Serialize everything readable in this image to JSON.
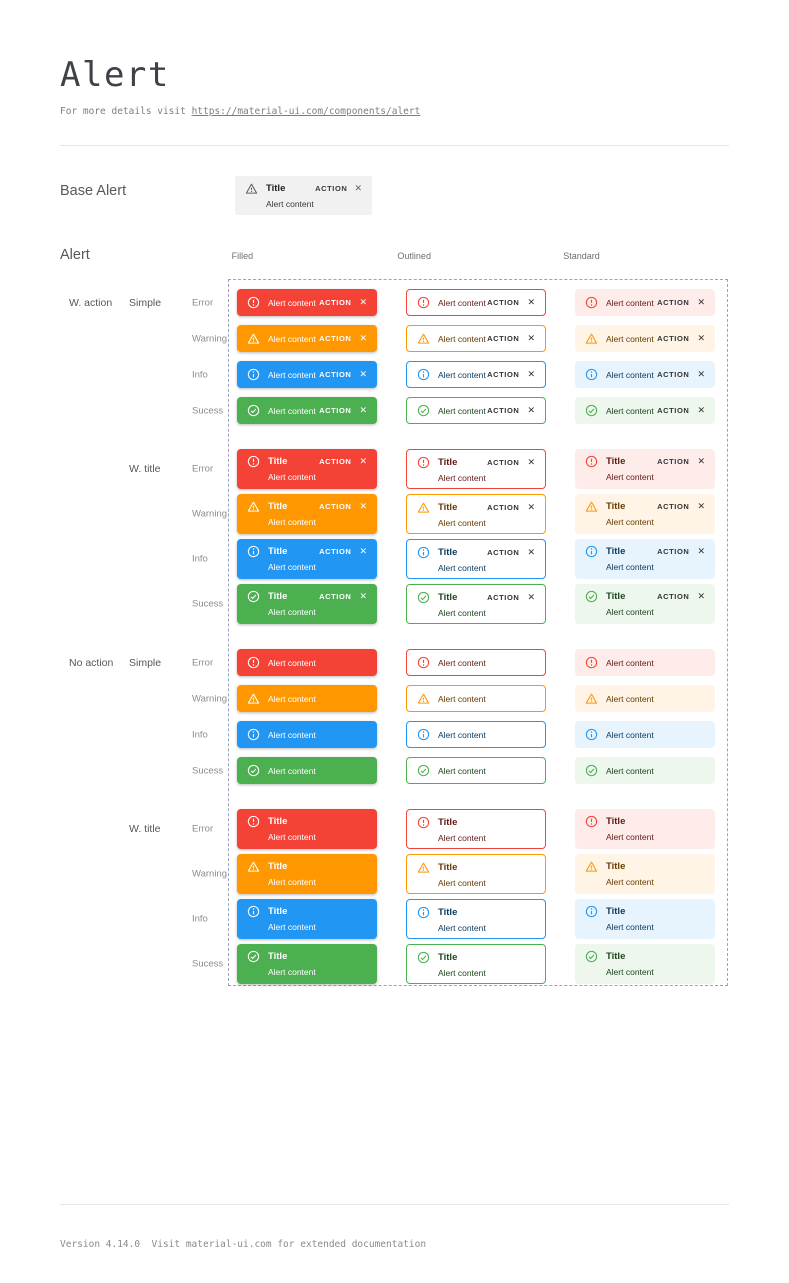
{
  "page": {
    "title": "Alert",
    "subtitle_prefix": "For more details visit ",
    "subtitle_link": "https://material-ui.com/components/alert",
    "footer": "Version 4.14.0  Visit material-ui.com for extended documentation"
  },
  "base_alert": {
    "label": "Base Alert",
    "title": "Title",
    "content": "Alert content",
    "action": "ACTION",
    "close_glyph": "✕",
    "icon": "warning-triangle-icon",
    "background": "#f1f1f1"
  },
  "matrix": {
    "label": "Alert",
    "columns": [
      {
        "label": "Filled",
        "variant": "filled"
      },
      {
        "label": "Outlined",
        "variant": "outlined"
      },
      {
        "label": "Standard",
        "variant": "standard"
      }
    ],
    "severity_keys": [
      "error",
      "warning",
      "info",
      "success"
    ],
    "groups": [
      {
        "group_label": "W. action",
        "variant_label": "Simple",
        "with_title": false,
        "with_action": true,
        "rows": [
          "Error",
          "Warning",
          "Info",
          "Sucess"
        ]
      },
      {
        "group_label": "",
        "variant_label": "W. title",
        "with_title": true,
        "with_action": true,
        "rows": [
          "Error",
          "Warning",
          "Info",
          "Sucess"
        ]
      },
      {
        "group_label": "No action",
        "variant_label": "Simple",
        "with_title": false,
        "with_action": false,
        "rows": [
          "Error",
          "Warning",
          "Info",
          "Sucess"
        ]
      },
      {
        "group_label": "",
        "variant_label": "W. title",
        "with_title": true,
        "with_action": false,
        "rows": [
          "Error",
          "Warning",
          "Info",
          "Sucess"
        ]
      }
    ],
    "alert_template": {
      "title": "Title",
      "content": "Alert content",
      "action": "ACTION",
      "close_glyph": "✕"
    }
  },
  "icons": {
    "error": "error-outline-icon",
    "warning": "warning-triangle-icon",
    "info": "info-outline-icon",
    "success": "check-circle-icon",
    "close": "close-icon"
  },
  "colors": {
    "error": {
      "main": "#f44336",
      "background": "#fdecea",
      "dark": "#611a15"
    },
    "warning": {
      "main": "#ff9800",
      "background": "#fff4e5",
      "dark": "#663c00"
    },
    "info": {
      "main": "#2196f3",
      "background": "#e8f4fd",
      "dark": "#0d3c61"
    },
    "success": {
      "main": "#4caf50",
      "background": "#edf7ed",
      "dark": "#1e4620"
    },
    "filled_text": "#ffffff",
    "neutral_action_text": "#333333",
    "dashed_border": "#9ba1c0"
  }
}
